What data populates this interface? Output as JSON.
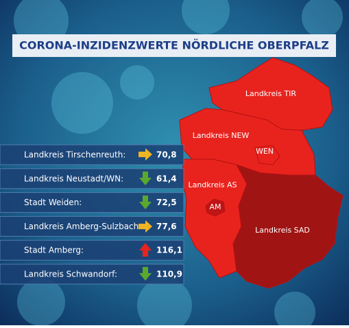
{
  "title": "CORONA-INZIDENZWERTE NÖRDLICHE OBERPFALZ",
  "map": {
    "regions": [
      {
        "label": "Landkreis TIR"
      },
      {
        "label": "Landkreis NEW"
      },
      {
        "label": "WEN"
      },
      {
        "label": "Landkreis AS"
      },
      {
        "label": "AM"
      },
      {
        "label": "Landkreis SAD"
      }
    ]
  },
  "table": {
    "rows": [
      [
        "Landkreis Tirschenreuth:",
        "70,8"
      ],
      [
        "Landkreis Neustadt/WN:",
        "61,4"
      ],
      [
        "Stadt Weiden:",
        "72,5"
      ],
      [
        "Landkreis Amberg-Sulzbach:",
        "77,6"
      ],
      [
        "Stadt Amberg:",
        "116,1"
      ],
      [
        "Landkreis Schwandorf:",
        "110,9"
      ]
    ]
  }
}
